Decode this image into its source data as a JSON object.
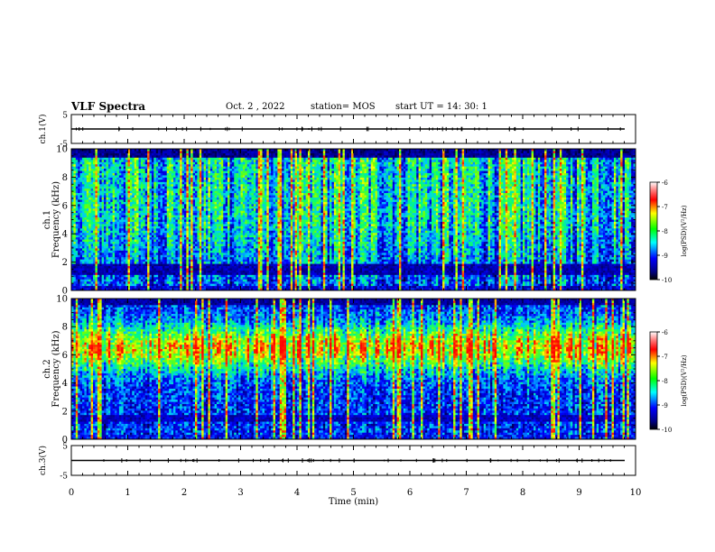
{
  "header": {
    "title": "VLF Spectra",
    "date": "Oct. 2 , 2022",
    "station": "station= MOS",
    "start_ut": "start UT = 14: 30: 1"
  },
  "chart_data": [
    {
      "type": "line",
      "panel": "ch1-waveform",
      "ylabel": "ch.1(V)",
      "ylim": [
        -5,
        5
      ],
      "yticks": [
        "5",
        "-5"
      ],
      "xlim": [
        0,
        10
      ],
      "series": [
        {
          "values_note_level": 0
        }
      ]
    },
    {
      "type": "heatmap",
      "panel": "ch1-spectrogram",
      "ylabel_channel": "ch.1",
      "ylabel": "Frequency (kHz)",
      "ylim": [
        0,
        10
      ],
      "yticks": [
        "0",
        "2",
        "4",
        "6",
        "8",
        "10"
      ],
      "xlim": [
        0,
        10
      ],
      "colorbar": {
        "label": "log(PSD)(V²/Hz)",
        "range": [
          -10,
          -6
        ],
        "ticks": [
          "-6",
          "-7",
          "-8",
          "-9",
          "-10"
        ]
      }
    },
    {
      "type": "heatmap",
      "panel": "ch2-spectrogram",
      "ylabel_channel": "ch.2",
      "ylabel": "Frequency (kHz)",
      "ylim": [
        0,
        10
      ],
      "yticks": [
        "0",
        "2",
        "4",
        "6",
        "8",
        "10"
      ],
      "xlim": [
        0,
        10
      ],
      "colorbar": {
        "label": "log(PSD)(V²/Hz)",
        "range": [
          -10,
          -6
        ],
        "ticks": [
          "-6",
          "-7",
          "-8",
          "-9",
          "-10"
        ]
      }
    },
    {
      "type": "line",
      "panel": "ch3-waveform",
      "ylabel": "ch.3(V)",
      "ylim": [
        -5,
        5
      ],
      "yticks": [
        "5",
        "-5"
      ],
      "xlim": [
        0,
        10
      ],
      "xlabel": "Time (min)",
      "xticks": [
        "0",
        "1",
        "2",
        "3",
        "4",
        "5",
        "6",
        "7",
        "8",
        "9",
        "10"
      ]
    }
  ]
}
